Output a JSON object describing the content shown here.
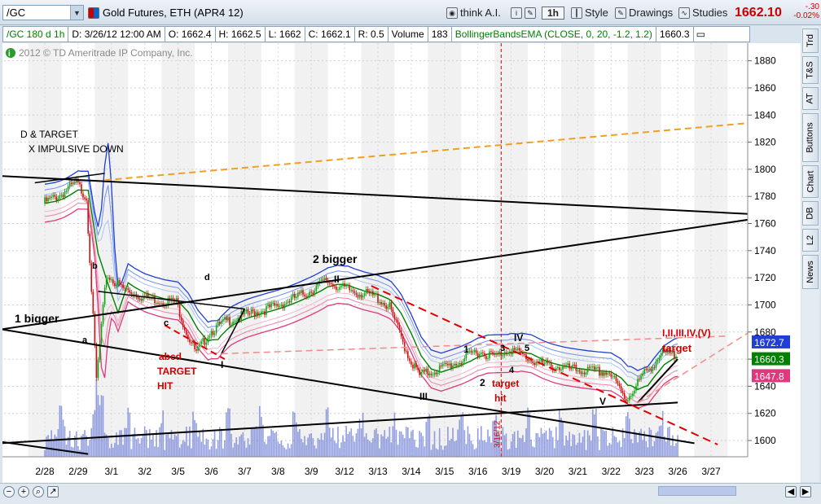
{
  "toolbar": {
    "symbol": "/GC",
    "title": "Gold Futures, ETH (APR4 12)",
    "think": "think A.I.",
    "interval": "1h",
    "style": "Style",
    "drawings": "Drawings",
    "studies": "Studies",
    "price": "1662.10",
    "change": "-.30",
    "change_pct": "-0.02%"
  },
  "status": {
    "symbol": "/GC 180 d 1h",
    "date": "D: 3/26/12 12:00 AM",
    "open": "O: 1662.4",
    "high": "H: 1662.5",
    "low": "L: 1662",
    "close": "C: 1662.1",
    "range": "R: 0.5",
    "vol_label": "Volume",
    "vol": "183",
    "study": "BollingerBandsEMA (CLOSE, 0, 20, -1.2, 1.2)",
    "study_val": "1660.3"
  },
  "copyright": "2012 © TD Ameritrade IP Company, Inc.",
  "side_tabs": [
    "Trd",
    "T&S",
    "AT",
    "Buttons",
    "Chart",
    "DB",
    "L2",
    "News"
  ],
  "colors": {
    "price_red": "#cc0000",
    "green_line": "#008000",
    "blue_band": "#1f3fd6",
    "pink_band": "#e0387c"
  },
  "chart_data": {
    "type": "line",
    "x_labels": [
      "2/28",
      "2/29",
      "3/1",
      "3/2",
      "3/5",
      "3/6",
      "3/7",
      "3/8",
      "3/9",
      "3/12",
      "3/13",
      "3/14",
      "3/15",
      "3/16",
      "3/19",
      "3/20",
      "3/21",
      "3/22",
      "3/23",
      "3/26",
      "3/27"
    ],
    "y_ticks": [
      1600,
      1620,
      1640,
      1660,
      1680,
      1700,
      1720,
      1740,
      1760,
      1780,
      1800,
      1820,
      1840,
      1860,
      1880
    ],
    "ylim": [
      1588,
      1893
    ],
    "grid": true,
    "price_labels": [
      {
        "text": "1672.7",
        "value": 1672.7,
        "color": "#1f3fd6"
      },
      {
        "text": "1660.3",
        "value": 1660.3,
        "color": "#008000"
      },
      {
        "text": "1647.8",
        "value": 1647.8,
        "color": "#e0387c"
      }
    ],
    "series": [
      {
        "values": [
          [
            0,
            1775
          ],
          [
            0.5,
            1781
          ],
          [
            1,
            1790
          ],
          [
            1.3,
            1779
          ],
          [
            1.6,
            1645
          ],
          [
            1.9,
            1722
          ],
          [
            2.4,
            1712
          ],
          [
            3,
            1706
          ],
          [
            3.6,
            1703
          ],
          [
            4,
            1702
          ],
          [
            4.3,
            1680
          ],
          [
            4.6,
            1664
          ],
          [
            5,
            1680
          ],
          [
            5.5,
            1688
          ],
          [
            6,
            1692
          ],
          [
            7,
            1699
          ],
          [
            8,
            1710
          ],
          [
            8.5,
            1718
          ],
          [
            9,
            1712
          ],
          [
            10,
            1706
          ],
          [
            10.4,
            1698
          ],
          [
            11,
            1660
          ],
          [
            11.3,
            1648
          ],
          [
            11.8,
            1652
          ],
          [
            12.5,
            1658
          ],
          [
            13,
            1666
          ],
          [
            13.6,
            1662
          ],
          [
            14,
            1668
          ],
          [
            14.6,
            1660
          ],
          [
            15,
            1656
          ],
          [
            16,
            1652
          ],
          [
            17,
            1650
          ],
          [
            17.5,
            1630
          ],
          [
            18,
            1648
          ],
          [
            18.6,
            1664
          ],
          [
            19,
            1662
          ]
        ]
      }
    ],
    "annotations": [
      "D & TARGET",
      "X IMPULSIVE DOWN",
      "1 bigger",
      "2 bigger",
      "a",
      "b",
      "c",
      "d",
      "abcd",
      "TARGET",
      "HIT",
      "I",
      "II",
      "III",
      "IV",
      "V",
      "1",
      "2",
      "3",
      "4",
      "5",
      "target",
      "hit",
      "I,II,III,IV,(V)",
      "target",
      "3/16/12"
    ]
  }
}
